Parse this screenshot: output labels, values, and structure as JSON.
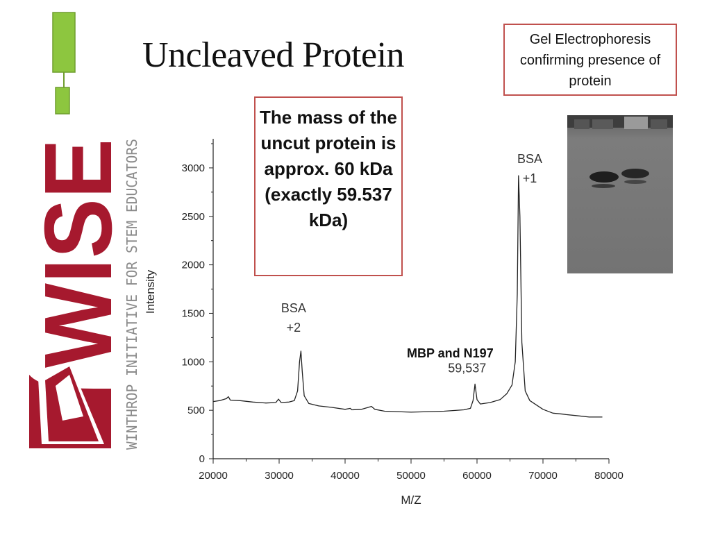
{
  "slide": {
    "title": "Uncleaved Protein",
    "gel_callout": "Gel Electrophoresis confirming presence of protein",
    "mass_callout": "The mass of the uncut protein is approx. 60 kDa (exactly 59.537 kDa)",
    "peak_note": "MBP and N197"
  },
  "logo": {
    "wordmark": "WISE",
    "tagline": "WINTHROP INITIATIVE FOR STEM EDUCATORS",
    "colors": {
      "maroon": "#a6192e",
      "grey": "#8a8a8a",
      "green": "#8dc63f"
    }
  },
  "chart_data": {
    "type": "line",
    "xlabel": "M/Z",
    "ylabel": "Intensity",
    "xlim": [
      20000,
      80000
    ],
    "ylim": [
      0,
      3300
    ],
    "x_ticks": [
      "20000",
      "30000",
      "40000",
      "50000",
      "60000",
      "70000",
      "80000"
    ],
    "y_ticks": [
      "0",
      "500",
      "1000",
      "1500",
      "2000",
      "2500",
      "3000"
    ],
    "grid": false,
    "series": [
      {
        "color": "#222222",
        "points": [
          [
            20000,
            590
          ],
          [
            21000,
            600
          ],
          [
            22000,
            620
          ],
          [
            22300,
            640
          ],
          [
            22600,
            605
          ],
          [
            24000,
            600
          ],
          [
            26000,
            585
          ],
          [
            28000,
            575
          ],
          [
            29500,
            580
          ],
          [
            29900,
            615
          ],
          [
            30300,
            580
          ],
          [
            31500,
            585
          ],
          [
            32300,
            600
          ],
          [
            32800,
            700
          ],
          [
            33100,
            1000
          ],
          [
            33300,
            1110
          ],
          [
            33500,
            900
          ],
          [
            33800,
            650
          ],
          [
            34500,
            570
          ],
          [
            36000,
            545
          ],
          [
            38000,
            530
          ],
          [
            40000,
            510
          ],
          [
            40800,
            520
          ],
          [
            41000,
            505
          ],
          [
            42500,
            510
          ],
          [
            43500,
            530
          ],
          [
            44000,
            540
          ],
          [
            44500,
            510
          ],
          [
            46000,
            490
          ],
          [
            50000,
            480
          ],
          [
            55000,
            490
          ],
          [
            58000,
            505
          ],
          [
            59000,
            520
          ],
          [
            59400,
            600
          ],
          [
            59700,
            770
          ],
          [
            60000,
            610
          ],
          [
            60500,
            565
          ],
          [
            62000,
            580
          ],
          [
            63500,
            610
          ],
          [
            64500,
            670
          ],
          [
            65300,
            760
          ],
          [
            65800,
            1000
          ],
          [
            66100,
            1700
          ],
          [
            66300,
            2920
          ],
          [
            66500,
            2500
          ],
          [
            66800,
            1200
          ],
          [
            67300,
            700
          ],
          [
            68000,
            600
          ],
          [
            70000,
            510
          ],
          [
            71500,
            470
          ],
          [
            73000,
            460
          ],
          [
            73500,
            455
          ],
          [
            75000,
            445
          ],
          [
            77000,
            430
          ],
          [
            79000,
            430
          ]
        ]
      }
    ],
    "annotations": [
      {
        "text": "BSA",
        "x": 32200,
        "y": 1510
      },
      {
        "text": "+2",
        "x": 32200,
        "y": 1310
      },
      {
        "text": "BSA",
        "x": 68000,
        "y": 3050
      },
      {
        "text": "+1",
        "x": 68000,
        "y": 2850
      },
      {
        "text": "59,537",
        "x": 58500,
        "y": 890
      }
    ]
  }
}
